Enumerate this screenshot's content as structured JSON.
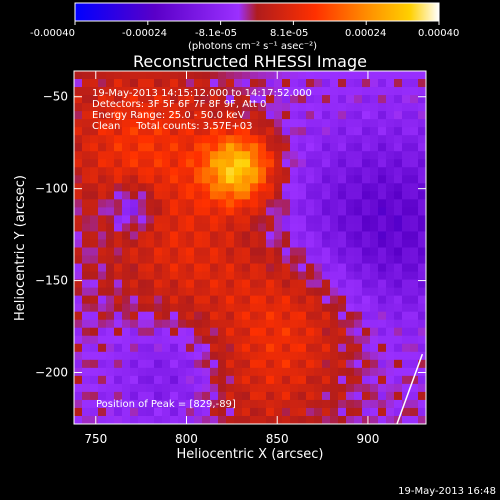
{
  "chart_data": {
    "type": "heatmap",
    "title": "Reconstructed RHESSI Image",
    "xlabel": "Heliocentric X (arcsec)",
    "ylabel": "Heliocentric Y (arcsec)",
    "xlim": [
      738,
      932
    ],
    "ylim": [
      -228,
      -36
    ],
    "x_ticks": [
      750,
      800,
      850,
      900
    ],
    "y_ticks": [
      -50,
      -100,
      -150,
      -200
    ],
    "x_tick_labels": [
      "750",
      "800",
      "850",
      "900"
    ],
    "y_tick_labels": [
      "−50",
      "−100",
      "−150",
      "−200"
    ],
    "colorbar": {
      "colormap": "blue-purple-red-orange-yellow-white",
      "range": [
        -0.0004,
        0.0004
      ],
      "tick_labels": [
        "-0.00040",
        "-0.00024",
        "-8.1e-05",
        "8.1e-05",
        "0.00024",
        "0.00040"
      ],
      "unit_label": "(photons cm⁻² s⁻¹ asec⁻²)",
      "colors": [
        "#0000ff",
        "#5a00c8",
        "#9b30ff",
        "#b01c1c",
        "#ff3000",
        "#ff8c00",
        "#ffd000",
        "#ffffff"
      ]
    },
    "annotations": {
      "time_range": "19-May-2013 14:15:12.000 to 14:17:52.000",
      "detectors": "Detectors: 3F 5F 6F 7F 8F 9F, Att 0",
      "energy_range": "Energy Range: 25.0 - 50.0 keV",
      "method_counts": "Clean     Total counts: 3.57E+03",
      "peak": "Position of Peak = [829,-89]"
    },
    "peak_position": [
      829,
      -89
    ],
    "limb_arc_points": [
      [
        930,
        -190
      ],
      [
        916,
        -228
      ]
    ],
    "grid": false,
    "legend": "colorbar-top"
  },
  "footer": {
    "timestamp": "19-May-2013 16:48"
  }
}
